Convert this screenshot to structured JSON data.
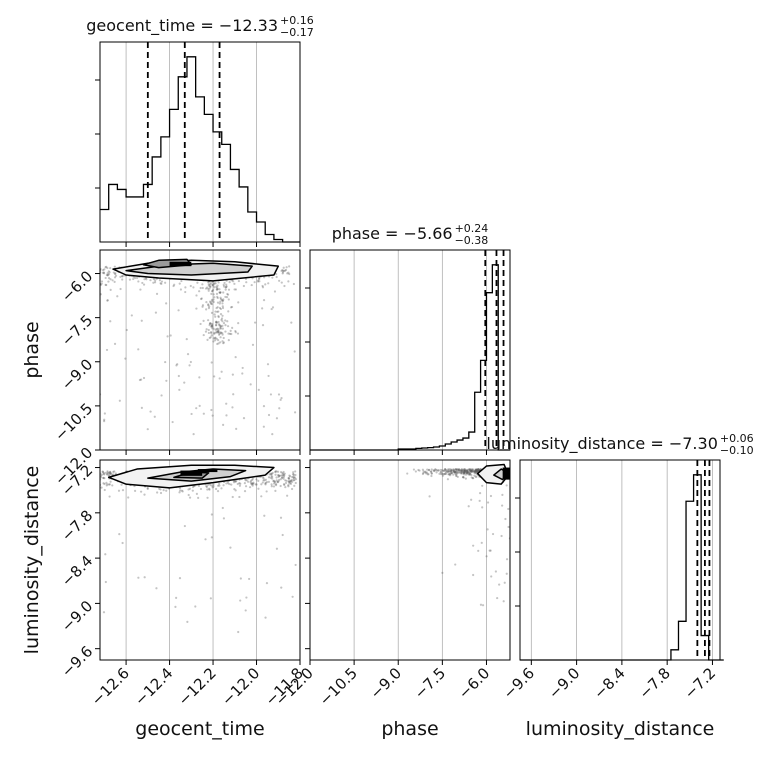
{
  "chart_data": {
    "type": "corner",
    "parameters": [
      "geocent_time",
      "phase",
      "luminosity_distance"
    ],
    "titles": [
      {
        "param": "geocent_time",
        "prefix": "geocent_time = −12.33",
        "plus": "+0.16",
        "minus": "−0.17"
      },
      {
        "param": "phase",
        "prefix": "phase = −5.66",
        "plus": "+0.24",
        "minus": "−0.38"
      },
      {
        "param": "luminosity_distance",
        "prefix": "luminosity_distance = −7.30",
        "plus": "+0.06",
        "minus": "−0.10"
      }
    ],
    "ranges": {
      "geocent_time": [
        -12.72,
        -11.8
      ],
      "phase": [
        -12.0,
        -5.2
      ],
      "luminosity_distance": [
        -9.75,
        -7.1
      ]
    },
    "ticks": {
      "geocent_time": {
        "values": [
          -12.6,
          -12.4,
          -12.2,
          -12.0,
          -11.8
        ],
        "labels": [
          "−12.6",
          "−12.4",
          "−12.2",
          "−12.0",
          "−11.8"
        ]
      },
      "phase": {
        "values": [
          -12.0,
          -10.5,
          -9.0,
          -7.5,
          -6.0
        ],
        "labels": [
          "−12.0",
          "−10.5",
          "−9.0",
          "−7.5",
          "−6.0"
        ]
      },
      "luminosity_distance": {
        "values": [
          -9.6,
          -9.0,
          -8.4,
          -7.8,
          -7.2
        ],
        "labels": [
          "−9.6",
          "−9.0",
          "−8.4",
          "−7.8",
          "−7.2"
        ]
      }
    },
    "quantiles": {
      "geocent_time": [
        -12.5,
        -12.33,
        -12.17
      ],
      "phase": [
        -6.04,
        -5.66,
        -5.42
      ],
      "luminosity_distance": [
        -7.4,
        -7.3,
        -7.24
      ]
    },
    "histograms": {
      "geocent_time": {
        "start": -12.72,
        "step": 0.04,
        "counts": [
          0.13,
          0.23,
          0.21,
          0.18,
          0.18,
          0.23,
          0.34,
          0.42,
          0.53,
          0.66,
          0.74,
          0.58,
          0.51,
          0.44,
          0.39,
          0.29,
          0.22,
          0.12,
          0.08,
          0.03,
          0.01,
          0.0,
          0.0
        ]
      },
      "phase": {
        "start": -12.0,
        "step": 0.2,
        "counts": [
          0.0,
          0.0,
          0.0,
          0.0,
          0.0,
          0.0,
          0.0,
          0.0,
          0.0,
          0.0,
          0.0,
          0.0,
          0.0,
          0.0,
          0.0,
          0.005,
          0.005,
          0.005,
          0.008,
          0.01,
          0.012,
          0.015,
          0.02,
          0.03,
          0.04,
          0.05,
          0.06,
          0.09,
          0.29,
          0.45,
          0.79,
          0.93,
          0.0,
          0.0
        ]
      },
      "luminosity_distance": {
        "start": -9.75,
        "step": 0.1,
        "counts": [
          0.0,
          0.0,
          0.0,
          0.0,
          0.0,
          0.0,
          0.0,
          0.0,
          0.0,
          0.0,
          0.0,
          0.0,
          0.0,
          0.0,
          0.0,
          0.0,
          0.0,
          0.0,
          0.0,
          0.0,
          0.05,
          0.19,
          0.78,
          0.91,
          0.12,
          0.0,
          0.0
        ]
      }
    },
    "contours": {
      "phase_vs_geocent_time": [
        [
          [
            -12.66,
            -5.85
          ],
          [
            -12.5,
            -5.65
          ],
          [
            -12.3,
            -5.55
          ],
          [
            -12.1,
            -5.6
          ],
          [
            -11.9,
            -5.75
          ],
          [
            -11.92,
            -6.05
          ],
          [
            -12.2,
            -6.25
          ],
          [
            -12.45,
            -6.15
          ],
          [
            -12.6,
            -6.05
          ]
        ],
        [
          [
            -12.6,
            -5.9
          ],
          [
            -12.4,
            -5.7
          ],
          [
            -12.2,
            -5.65
          ],
          [
            -12.02,
            -5.75
          ],
          [
            -12.04,
            -5.95
          ],
          [
            -12.3,
            -6.05
          ],
          [
            -12.5,
            -6.0
          ]
        ],
        [
          [
            -12.52,
            -5.7
          ],
          [
            -12.45,
            -5.55
          ],
          [
            -12.32,
            -5.52
          ],
          [
            -12.3,
            -5.7
          ],
          [
            -12.45,
            -5.8
          ]
        ]
      ],
      "luminosity_distance_vs_geocent_time": [
        [
          [
            -12.68,
            -7.33
          ],
          [
            -12.55,
            -7.22
          ],
          [
            -12.3,
            -7.17
          ],
          [
            -12.1,
            -7.17
          ],
          [
            -11.92,
            -7.2
          ],
          [
            -11.96,
            -7.3
          ],
          [
            -12.2,
            -7.4
          ],
          [
            -12.4,
            -7.47
          ],
          [
            -12.6,
            -7.42
          ]
        ],
        [
          [
            -12.5,
            -7.34
          ],
          [
            -12.35,
            -7.26
          ],
          [
            -12.2,
            -7.22
          ],
          [
            -12.05,
            -7.24
          ],
          [
            -12.12,
            -7.32
          ],
          [
            -12.3,
            -7.38
          ]
        ],
        [
          [
            -12.38,
            -7.33
          ],
          [
            -12.3,
            -7.26
          ],
          [
            -12.22,
            -7.27
          ],
          [
            -12.25,
            -7.34
          ]
        ]
      ],
      "luminosity_distance_vs_phase": [
        [
          [
            -6.3,
            -7.28
          ],
          [
            -6.0,
            -7.18
          ],
          [
            -5.4,
            -7.16
          ],
          [
            -5.25,
            -7.3
          ],
          [
            -5.5,
            -7.42
          ],
          [
            -6.0,
            -7.4
          ]
        ],
        [
          [
            -5.75,
            -7.3
          ],
          [
            -5.5,
            -7.22
          ],
          [
            -5.3,
            -7.26
          ],
          [
            -5.45,
            -7.36
          ]
        ]
      ]
    },
    "density_cores": {
      "phase_vs_geocent_time": [
        [
          -12.4,
          -12.3,
          -5.6,
          -5.75
        ]
      ],
      "luminosity_distance_vs_geocent_time": [
        [
          -12.35,
          -12.25,
          -7.24,
          -7.31
        ],
        [
          -12.27,
          -12.18,
          -7.22,
          -7.26
        ]
      ],
      "luminosity_distance_vs_phase": [
        [
          -5.45,
          -5.2,
          -7.2,
          -7.36
        ]
      ]
    }
  }
}
